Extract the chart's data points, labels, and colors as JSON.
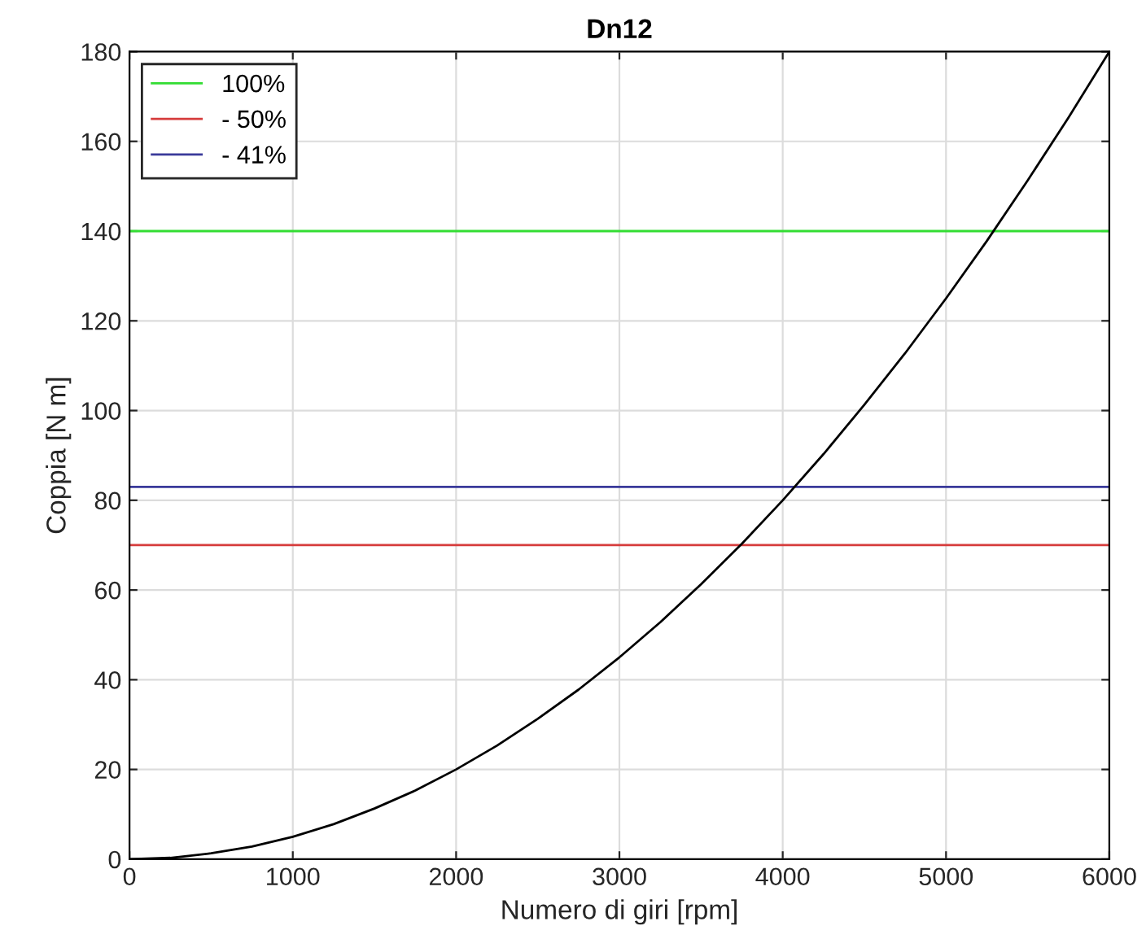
{
  "chart_data": {
    "type": "line",
    "title": "Dn12",
    "xlabel": "Numero di giri [rpm]",
    "ylabel": "Coppia [N m]",
    "series": [
      {
        "name": "100%",
        "color": "#33dd33",
        "x": [
          0,
          6000
        ],
        "values": [
          140,
          140
        ]
      },
      {
        "name": "- 50%",
        "color": "#d63c3c",
        "x": [
          0,
          6000
        ],
        "values": [
          70,
          70
        ]
      },
      {
        "name": "- 41%",
        "color": "#3a3a9a",
        "x": [
          0,
          6000
        ],
        "values": [
          83,
          83
        ]
      },
      {
        "color": "#000000",
        "x": [
          0,
          250,
          500,
          750,
          1000,
          1250,
          1500,
          1750,
          2000,
          2250,
          2500,
          2750,
          3000,
          3250,
          3500,
          3750,
          4000,
          4250,
          4500,
          4750,
          5000,
          5250,
          5500,
          5750,
          6000
        ],
        "values": [
          0,
          0.3,
          1.3,
          2.8,
          5,
          7.8,
          11.3,
          15.3,
          20,
          25.3,
          31.3,
          37.8,
          45,
          52.8,
          61.3,
          70.3,
          80,
          90.3,
          101.3,
          112.8,
          125,
          137.8,
          151.3,
          165.3,
          180
        ]
      }
    ],
    "xlim": [
      0,
      6000
    ],
    "xticks": [
      0,
      1000,
      2000,
      3000,
      4000,
      5000,
      6000
    ],
    "ylim": [
      0,
      180
    ],
    "yticks": [
      0,
      20,
      40,
      60,
      80,
      100,
      120,
      140,
      160,
      180
    ],
    "grid": true,
    "legend": "top left",
    "marker": "none",
    "line_style": "solid"
  }
}
